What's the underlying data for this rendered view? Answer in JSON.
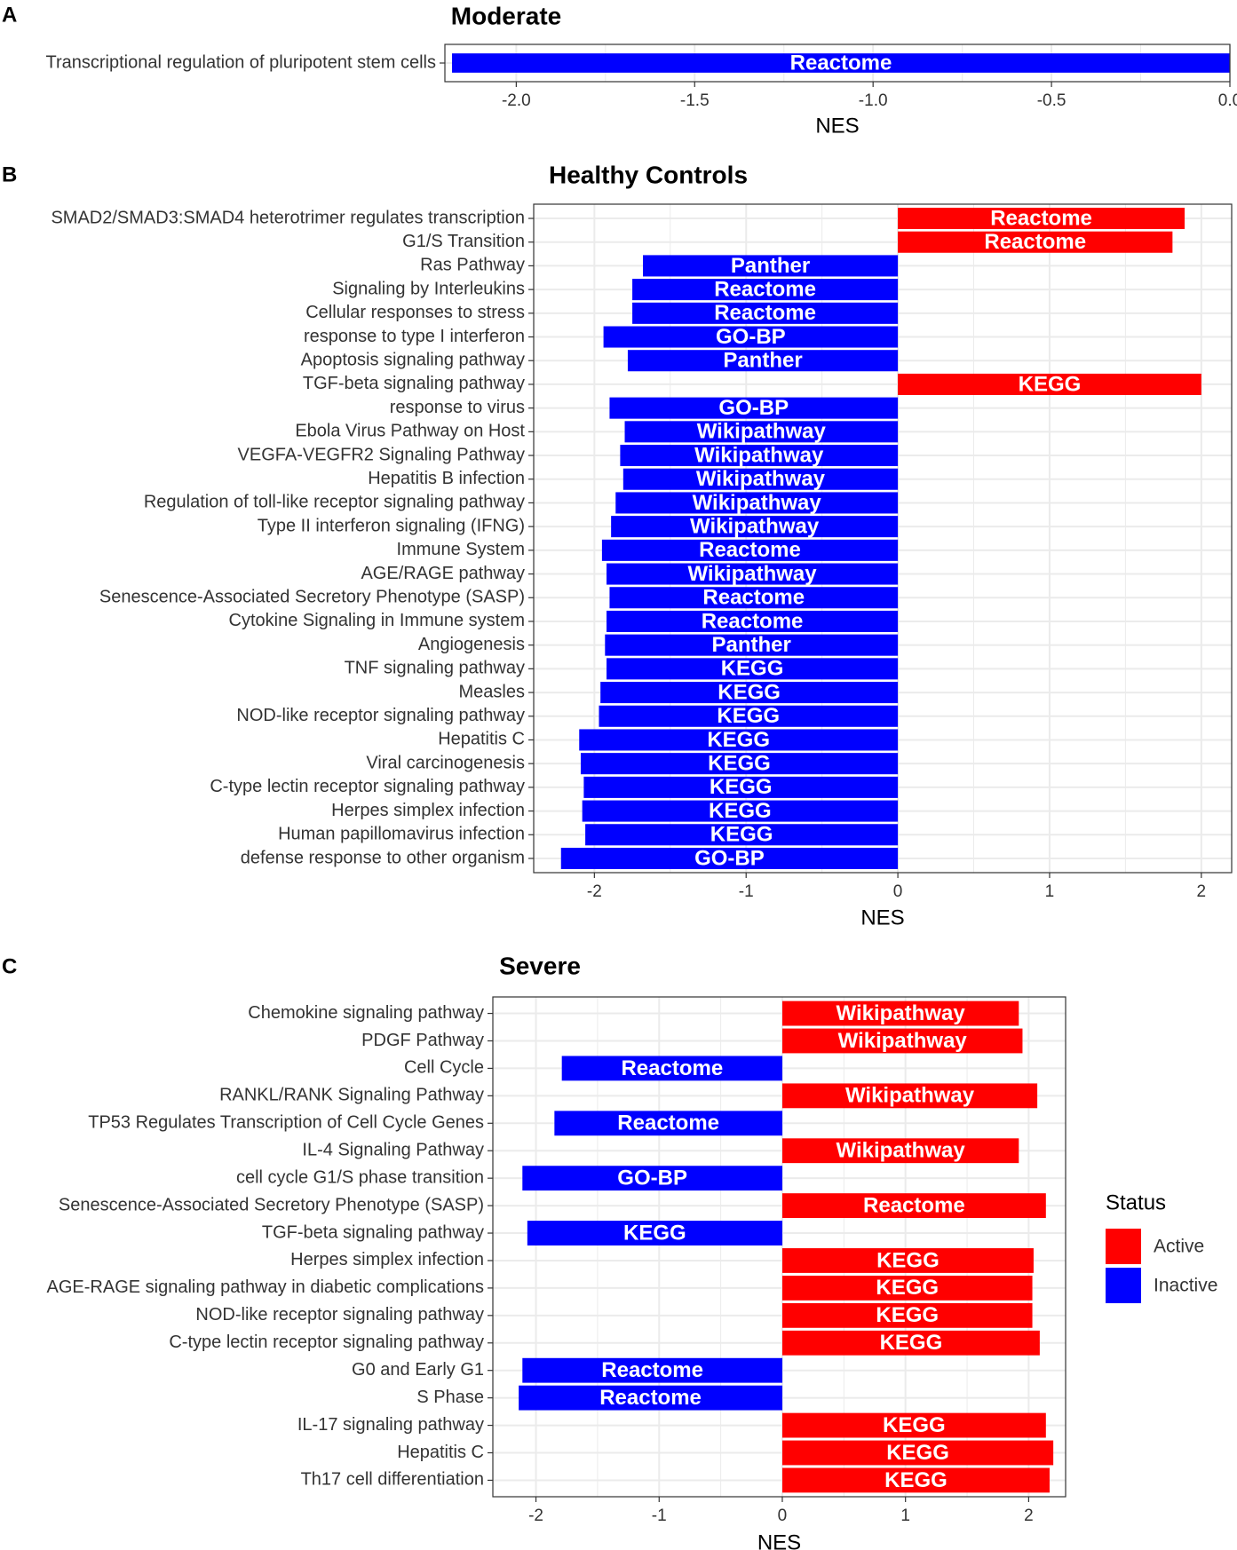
{
  "colors": {
    "Active": "#ff0000",
    "Inactive": "#0000ff",
    "grid": "#ebebeb",
    "panel_border": "#333333"
  },
  "legend": {
    "title": "Status",
    "items": [
      {
        "label": "Active",
        "color": "#ff0000"
      },
      {
        "label": "Inactive",
        "color": "#0000ff"
      }
    ]
  },
  "chart_data": [
    {
      "panel": "A",
      "type": "bar",
      "orientation": "horizontal",
      "title": "Moderate",
      "xlabel": "NES",
      "xlim": [
        -2.2,
        0.0
      ],
      "xticks": [
        -2.0,
        -1.5,
        -1.0,
        -0.5,
        0.0
      ],
      "xtick_labels": [
        "-2.0",
        "-1.5",
        "-1.0",
        "-0.5",
        "0.0"
      ],
      "categories": [
        "Transcriptional regulation of pluripotent stem cells"
      ],
      "values": [
        -2.18
      ],
      "sources": [
        "Reactome"
      ],
      "status": [
        "Inactive"
      ]
    },
    {
      "panel": "B",
      "type": "bar",
      "orientation": "horizontal",
      "title": "Healthy Controls",
      "xlabel": "NES",
      "xlim": [
        -2.4,
        2.2
      ],
      "xticks": [
        -2,
        -1,
        0,
        1,
        2
      ],
      "xtick_labels": [
        "-2",
        "-1",
        "0",
        "1",
        "2"
      ],
      "categories": [
        "SMAD2/SMAD3:SMAD4 heterotrimer regulates transcription",
        "G1/S Transition",
        "Ras Pathway",
        "Signaling by Interleukins",
        "Cellular responses to stress",
        "response to type I interferon",
        "Apoptosis signaling pathway",
        "TGF-beta signaling pathway",
        "response to virus",
        "Ebola Virus Pathway on Host",
        "VEGFA-VEGFR2 Signaling Pathway",
        "Hepatitis B infection",
        "Regulation of toll-like receptor signaling pathway",
        "Type II interferon signaling (IFNG)",
        "Immune System",
        "AGE/RAGE pathway",
        "Senescence-Associated Secretory Phenotype (SASP)",
        "Cytokine Signaling in Immune system",
        "Angiogenesis",
        "TNF signaling pathway",
        "Measles",
        "NOD-like receptor signaling pathway",
        "Hepatitis C",
        "Viral carcinogenesis",
        "C-type lectin receptor signaling pathway",
        "Herpes simplex infection",
        "Human papillomavirus infection",
        "defense response to other organism"
      ],
      "values": [
        1.89,
        1.81,
        -1.68,
        -1.75,
        -1.75,
        -1.94,
        -1.78,
        2.0,
        -1.9,
        -1.8,
        -1.83,
        -1.81,
        -1.86,
        -1.89,
        -1.95,
        -1.92,
        -1.9,
        -1.92,
        -1.93,
        -1.92,
        -1.96,
        -1.97,
        -2.1,
        -2.09,
        -2.07,
        -2.08,
        -2.06,
        -2.22
      ],
      "sources": [
        "Reactome",
        "Reactome",
        "Panther",
        "Reactome",
        "Reactome",
        "GO-BP",
        "Panther",
        "KEGG",
        "GO-BP",
        "Wikipathway",
        "Wikipathway",
        "Wikipathway",
        "Wikipathway",
        "Wikipathway",
        "Reactome",
        "Wikipathway",
        "Reactome",
        "Reactome",
        "Panther",
        "KEGG",
        "KEGG",
        "KEGG",
        "KEGG",
        "KEGG",
        "KEGG",
        "KEGG",
        "KEGG",
        "GO-BP"
      ],
      "status": [
        "Active",
        "Active",
        "Inactive",
        "Inactive",
        "Inactive",
        "Inactive",
        "Inactive",
        "Active",
        "Inactive",
        "Inactive",
        "Inactive",
        "Inactive",
        "Inactive",
        "Inactive",
        "Inactive",
        "Inactive",
        "Inactive",
        "Inactive",
        "Inactive",
        "Inactive",
        "Inactive",
        "Inactive",
        "Inactive",
        "Inactive",
        "Inactive",
        "Inactive",
        "Inactive",
        "Inactive"
      ]
    },
    {
      "panel": "C",
      "type": "bar",
      "orientation": "horizontal",
      "title": "Severe",
      "xlabel": "NES",
      "xlim": [
        -2.35,
        2.3
      ],
      "xticks": [
        -2,
        -1,
        0,
        1,
        2
      ],
      "xtick_labels": [
        "-2",
        "-1",
        "0",
        "1",
        "2"
      ],
      "categories": [
        "Chemokine signaling pathway",
        "PDGF Pathway",
        "Cell Cycle",
        "RANKL/RANK Signaling Pathway",
        "TP53 Regulates Transcription of Cell Cycle Genes",
        "IL-4 Signaling Pathway",
        "cell cycle G1/S phase transition",
        "Senescence-Associated Secretory Phenotype (SASP)",
        "TGF-beta signaling pathway",
        "Herpes simplex infection",
        "AGE-RAGE signaling pathway in diabetic complications",
        "NOD-like receptor signaling pathway",
        "C-type lectin receptor signaling pathway",
        "G0 and Early G1",
        "S Phase",
        "IL-17 signaling pathway",
        "Hepatitis C",
        "Th17 cell differentiation"
      ],
      "values": [
        1.92,
        1.95,
        -1.79,
        2.07,
        -1.85,
        1.92,
        -2.11,
        2.14,
        -2.07,
        2.04,
        2.03,
        2.03,
        2.09,
        -2.11,
        -2.14,
        2.14,
        2.2,
        2.17
      ],
      "sources": [
        "Wikipathway",
        "Wikipathway",
        "Reactome",
        "Wikipathway",
        "Reactome",
        "Wikipathway",
        "GO-BP",
        "Reactome",
        "KEGG",
        "KEGG",
        "KEGG",
        "KEGG",
        "KEGG",
        "Reactome",
        "Reactome",
        "KEGG",
        "KEGG",
        "KEGG"
      ],
      "status": [
        "Active",
        "Active",
        "Inactive",
        "Active",
        "Inactive",
        "Active",
        "Inactive",
        "Active",
        "Inactive",
        "Active",
        "Active",
        "Active",
        "Active",
        "Inactive",
        "Inactive",
        "Active",
        "Active",
        "Active"
      ]
    }
  ]
}
